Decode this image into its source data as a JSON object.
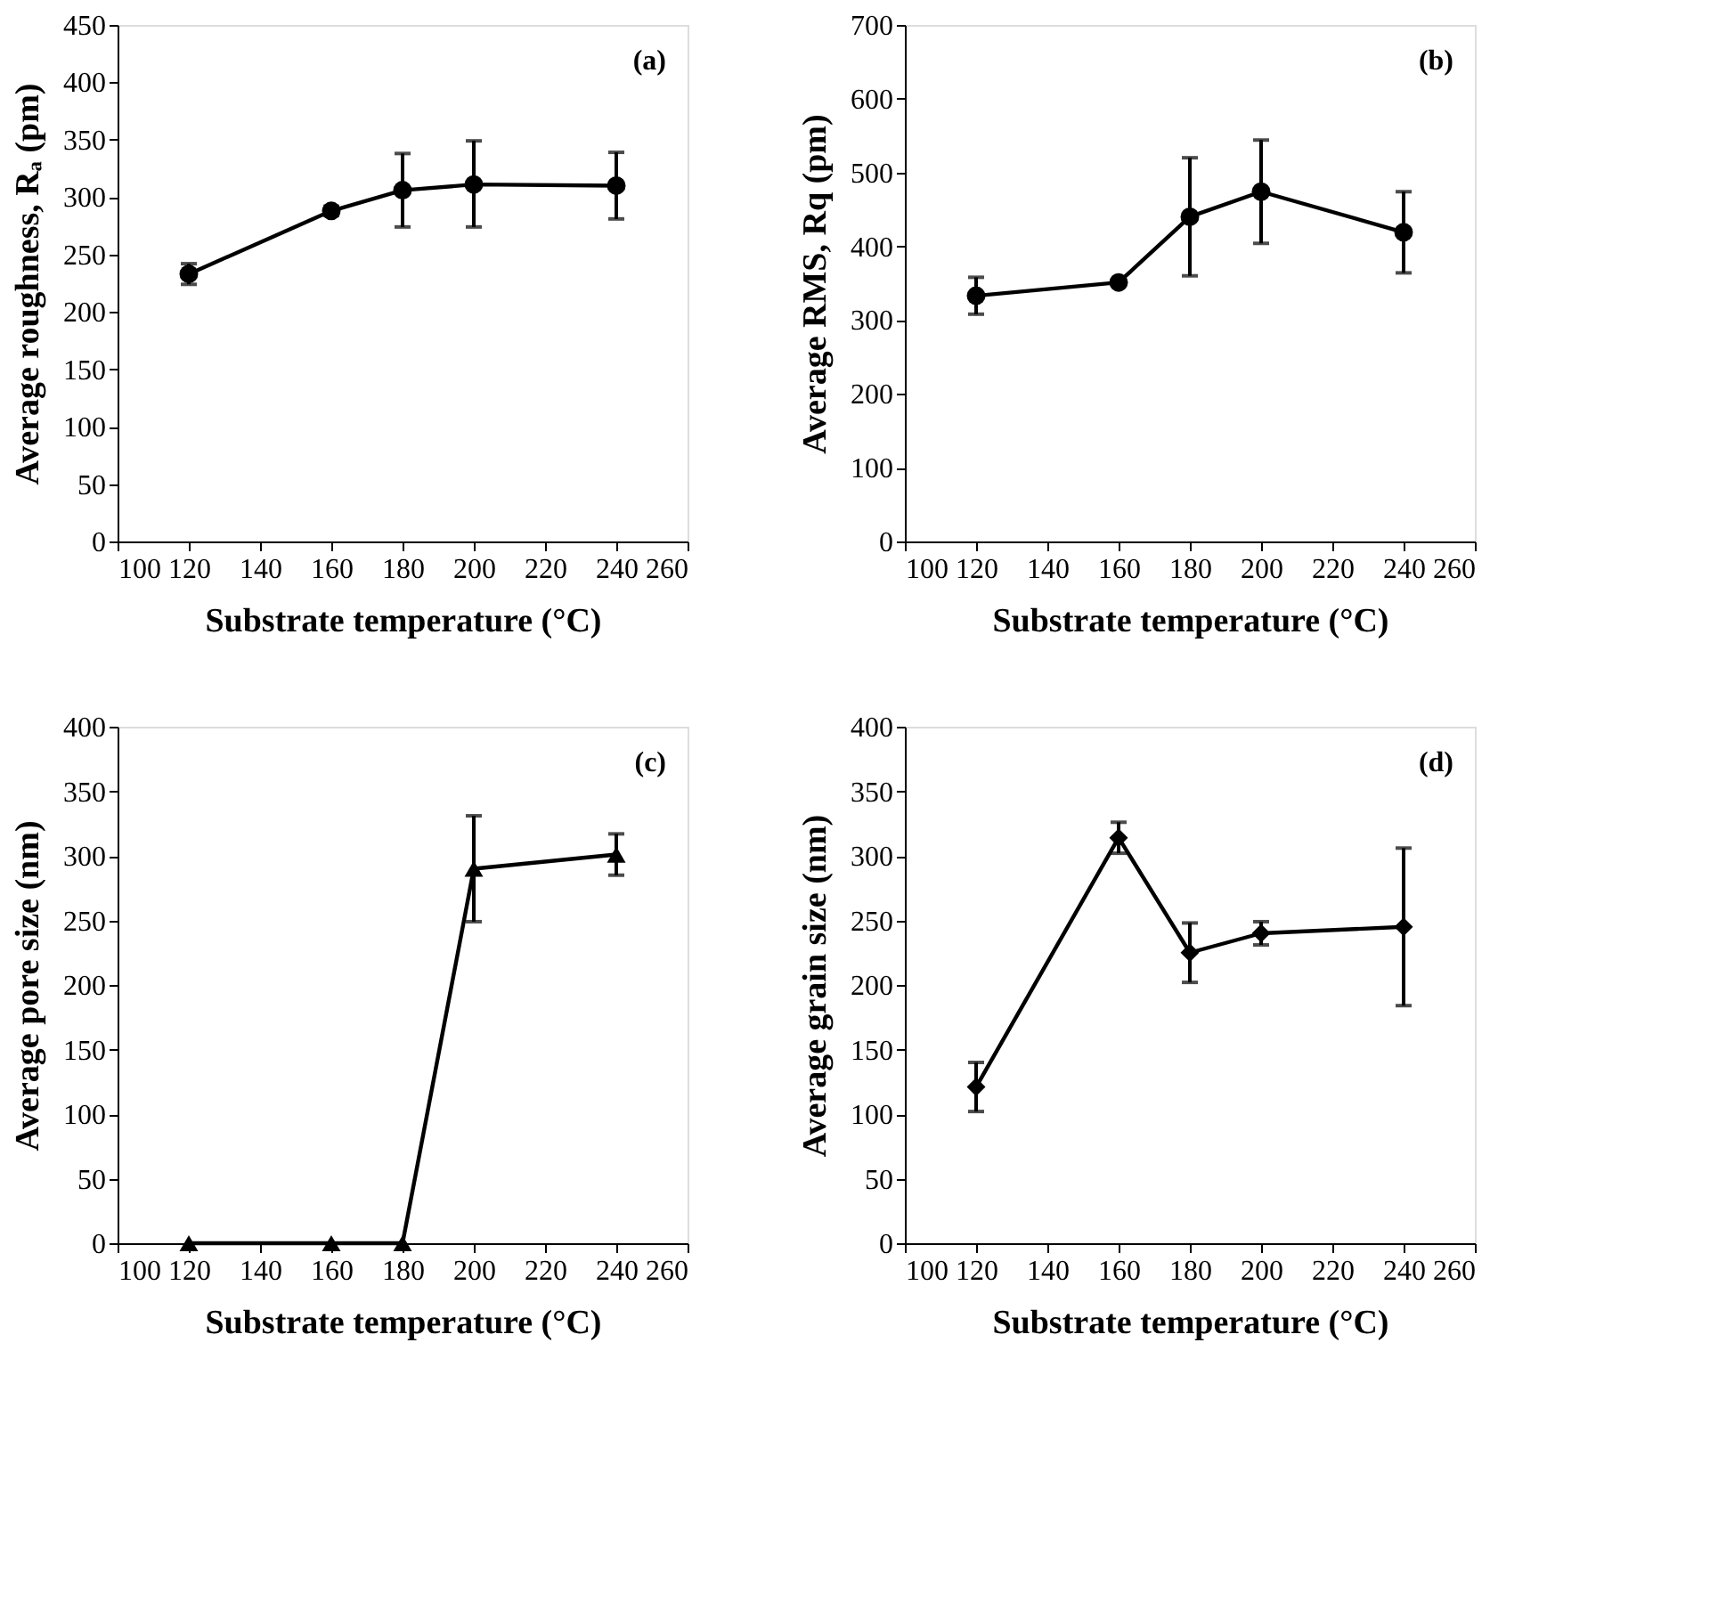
{
  "chart_data": [
    {
      "type": "line",
      "xlabel": "Substrate temperature (°C)",
      "ylabel": "Average roughness, Rₐ (pm)",
      "annotations": [
        "(a)"
      ],
      "marker": "circle",
      "line_style": "solid",
      "grid": false,
      "x": [
        120,
        160,
        180,
        200,
        240
      ],
      "xlim": [
        100,
        260
      ],
      "xticks": [
        100,
        120,
        140,
        160,
        180,
        200,
        220,
        240,
        260
      ],
      "ylim": [
        0,
        450
      ],
      "yticks": [
        0,
        50,
        100,
        150,
        200,
        250,
        300,
        350,
        400,
        450
      ],
      "series": [
        {
          "color": "#000000",
          "values": [
            233,
            288,
            306,
            311,
            310
          ],
          "errors": [
            9,
            4,
            32,
            [
              274,
              349
            ],
            29
          ]
        }
      ]
    },
    {
      "type": "line",
      "xlabel": "Substrate temperature (°C)",
      "ylabel": "Average RMS, Rq (pm)",
      "annotations": [
        "(b)"
      ],
      "marker": "circle",
      "line_style": "solid",
      "grid": false,
      "x": [
        120,
        160,
        180,
        200,
        240
      ],
      "xlim": [
        100,
        260
      ],
      "xticks": [
        100,
        120,
        140,
        160,
        180,
        200,
        220,
        240,
        260
      ],
      "ylim": [
        0,
        700
      ],
      "yticks": [
        0,
        100,
        200,
        300,
        400,
        500,
        600,
        700
      ],
      "series": [
        {
          "color": "#000000",
          "values": [
            333,
            351,
            440,
            474,
            419
          ],
          "errors": [
            25,
            4,
            80,
            70,
            55
          ]
        }
      ]
    },
    {
      "type": "line",
      "xlabel": "Substrate temperature (°C)",
      "ylabel": "Average pore  size (nm)",
      "annotations": [
        "(c)"
      ],
      "marker": "triangle",
      "line_style": "solid",
      "grid": false,
      "x": [
        120,
        160,
        180,
        200,
        240
      ],
      "xlim": [
        100,
        260
      ],
      "xticks": [
        100,
        120,
        140,
        160,
        180,
        200,
        220,
        240,
        260
      ],
      "ylim": [
        0,
        400
      ],
      "yticks": [
        0,
        50,
        100,
        150,
        200,
        250,
        300,
        350,
        400
      ],
      "series": [
        {
          "color": "#000000",
          "values": [
            0,
            0,
            0,
            290,
            301
          ],
          "errors": [
            null,
            null,
            null,
            41,
            16
          ]
        }
      ]
    },
    {
      "type": "line",
      "xlabel": "Substrate temperature (°C)",
      "ylabel": "Average grain size (nm)",
      "annotations": [
        "(d)"
      ],
      "marker": "diamond",
      "line_style": "solid",
      "grid": false,
      "x": [
        120,
        160,
        180,
        200,
        240
      ],
      "xlim": [
        100,
        260
      ],
      "xticks": [
        100,
        120,
        140,
        160,
        180,
        200,
        220,
        240,
        260
      ],
      "ylim": [
        0,
        400
      ],
      "yticks": [
        0,
        50,
        100,
        150,
        200,
        250,
        300,
        350,
        400
      ],
      "series": [
        {
          "color": "#000000",
          "values": [
            121,
            314,
            225,
            240,
            245
          ],
          "errors": [
            19,
            12,
            23,
            9,
            [
              184,
              306
            ]
          ]
        }
      ]
    }
  ]
}
